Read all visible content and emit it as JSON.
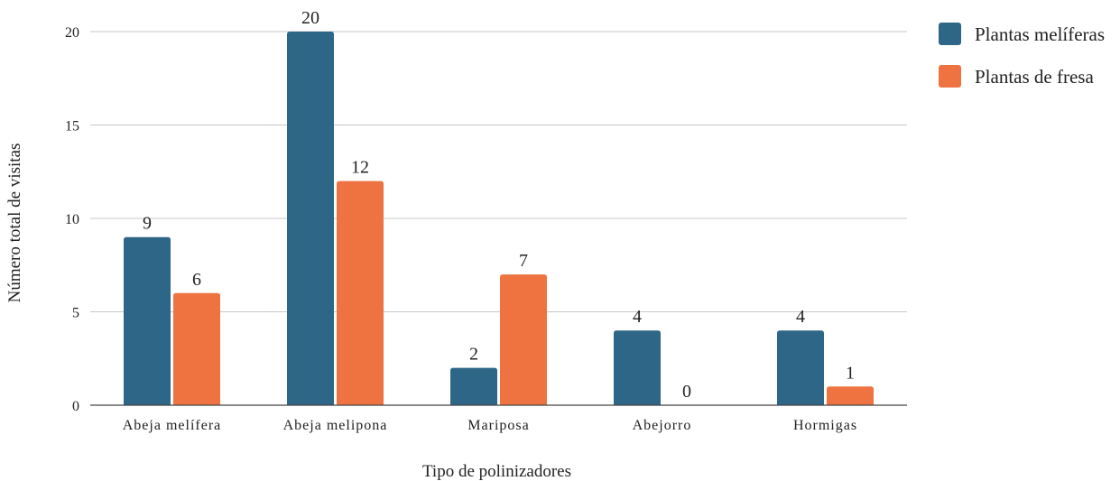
{
  "chart_data": {
    "type": "bar",
    "categories": [
      "Abeja melífera",
      "Abeja melipona",
      "Mariposa",
      "Abejorro",
      "Hormigas"
    ],
    "series": [
      {
        "name": "Plantas melíferas",
        "values": [
          9,
          20,
          2,
          4,
          4
        ],
        "color": "#2e6688"
      },
      {
        "name": "Plantas de fresa",
        "values": [
          6,
          12,
          7,
          0,
          1
        ],
        "color": "#ee7340"
      }
    ],
    "xlabel": "Tipo de polinizadores",
    "ylabel": "Número total de visitas",
    "ylim": [
      0,
      20
    ],
    "yticks": [
      0,
      5,
      10,
      15,
      20
    ],
    "grid": true,
    "legend": "top-right",
    "data_labels": true
  }
}
